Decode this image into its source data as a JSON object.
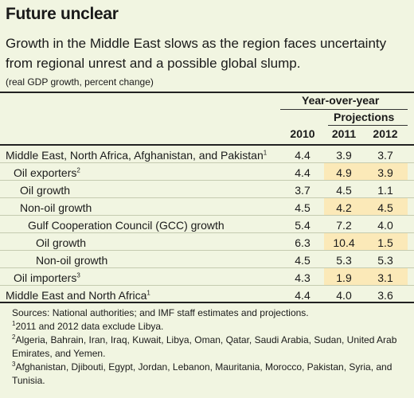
{
  "title": "Future unclear",
  "subtitle": "Growth in the Middle East slows as the region faces uncertainty from regional unrest and a possible global slump.",
  "note": "(real GDP growth, percent change)",
  "header": {
    "yoy": "Year-over-year",
    "projections": "Projections",
    "years": [
      "2010",
      "2011",
      "2012"
    ]
  },
  "rows": [
    {
      "label": "Middle East, North Africa, Afghanistan, and Pakistan",
      "sup": "1",
      "indent": 0,
      "values": [
        "4.4",
        "3.9",
        "3.7"
      ],
      "shaded": false
    },
    {
      "label": "Oil exporters",
      "sup": "2",
      "indent": 1,
      "values": [
        "4.4",
        "4.9",
        "3.9"
      ],
      "shaded": true
    },
    {
      "label": "Oil growth",
      "sup": "",
      "indent": 2,
      "values": [
        "3.7",
        "4.5",
        "1.1"
      ],
      "shaded": false
    },
    {
      "label": "Non-oil growth",
      "sup": "",
      "indent": 2,
      "values": [
        "4.5",
        "4.2",
        "4.5"
      ],
      "shaded": true
    },
    {
      "label": "Gulf Cooperation Council (GCC) growth",
      "sup": "",
      "indent": 3,
      "values": [
        "5.4",
        "7.2",
        "4.0"
      ],
      "shaded": false
    },
    {
      "label": "Oil growth",
      "sup": "",
      "indent": 4,
      "values": [
        "6.3",
        "10.4",
        "1.5"
      ],
      "shaded": true
    },
    {
      "label": "Non-oil growth",
      "sup": "",
      "indent": 4,
      "values": [
        "4.5",
        "5.3",
        "5.3"
      ],
      "shaded": false
    },
    {
      "label": "Oil importers",
      "sup": "3",
      "indent": 1,
      "values": [
        "4.3",
        "1.9",
        "3.1"
      ],
      "shaded": true
    },
    {
      "label": "Middle East and North Africa",
      "sup": "1",
      "indent": 0,
      "values": [
        "4.4",
        "4.0",
        "3.6"
      ],
      "shaded": false
    }
  ],
  "footnotes": {
    "sources": "Sources: National authorities; and IMF staff estimates and projections.",
    "note1_mark": "1",
    "note1": "2011 and 2012 data exclude Libya.",
    "note2_mark": "2",
    "note2": "Algeria, Bahrain, Iran, Iraq, Kuwait, Libya, Oman, Qatar, Saudi Arabia, Sudan, United Arab Emirates, and Yemen.",
    "note3_mark": "3",
    "note3": "Afghanistan, Djibouti, Egypt, Jordan, Lebanon, Mauritania, Morocco, Pakistan, Syria, and Tunisia."
  },
  "colors": {
    "background": "#f1f5e1",
    "shade": "#fbe9b8"
  }
}
